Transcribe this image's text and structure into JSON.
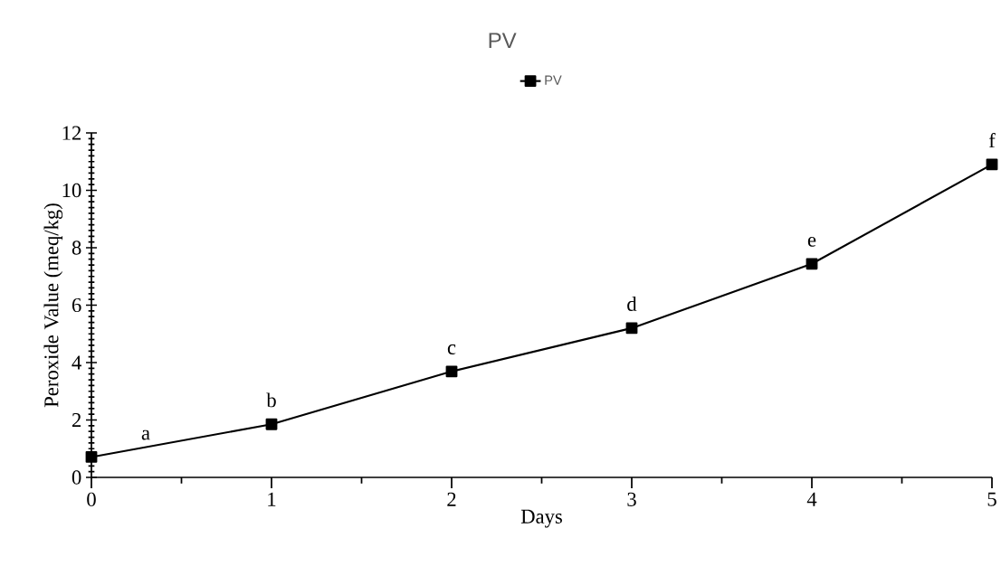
{
  "chart_data": {
    "type": "line",
    "title": "PV",
    "xlabel": "Days",
    "ylabel": "Peroxide Value (meq/kg)",
    "x": [
      0,
      1,
      2,
      3,
      4,
      5
    ],
    "series": [
      {
        "name": "PV",
        "color": "#000000",
        "values": [
          0.71,
          1.85,
          3.69,
          5.2,
          7.44,
          10.9
        ]
      }
    ],
    "xlim": [
      0,
      5
    ],
    "ylim": [
      0,
      12
    ],
    "xticks": [
      0,
      1,
      2,
      3,
      4,
      5
    ],
    "yticks": [
      0,
      2,
      4,
      6,
      8,
      10,
      12
    ],
    "legend": "top",
    "marker": "square",
    "line_style": "solid",
    "annotations": [
      "a",
      "b",
      "c",
      "d",
      "e",
      "f"
    ]
  }
}
